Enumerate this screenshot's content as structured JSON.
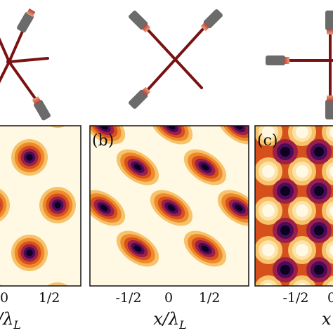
{
  "figure": {
    "panels": [
      {
        "id": "a",
        "label": "",
        "x_ticks": [
          "0",
          "1/2"
        ],
        "x_axis_label": {
          "main": "/λ",
          "sub": "L",
          "partial_prefix": ""
        }
      },
      {
        "id": "b",
        "label": "(b)",
        "x_ticks": [
          "-1/2",
          "0",
          "1/2"
        ],
        "x_axis_label": {
          "main": "x/λ",
          "sub": "L"
        }
      },
      {
        "id": "c",
        "label": "(c)",
        "x_ticks": [
          "-1/2",
          "0"
        ],
        "x_axis_label": {
          "main": "x"
        }
      }
    ],
    "colors": {
      "beam": "#7a1212",
      "laser_body": "#6b6b6b",
      "laser_tip": "#e8a07a",
      "frame": "#111111",
      "map_low": "#0d0221",
      "map_mid": "#d6501c",
      "map_high": "#fff8e2"
    },
    "icons": [
      "laser-icon",
      "beam-line"
    ]
  }
}
